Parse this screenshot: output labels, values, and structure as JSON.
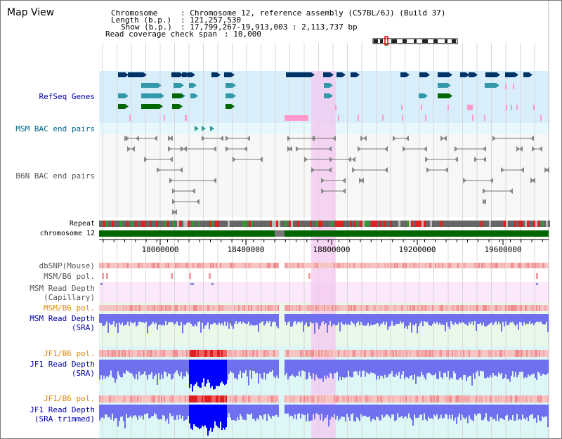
{
  "title": "Map View",
  "info": {
    "chromosome_key": "Chromosome",
    "chromosome_value": ": Chromosome 12, reference assembly (C57BL/6J) (Build 37)",
    "length_key": "Length (b.p.)",
    "length_value": ": 121,257,530",
    "show_key": "Show (b.p.)",
    "show_value": ": 17,799,267-19,913,003 : 2,113,737 bp",
    "coverage_key": "Read coverage check span",
    "coverage_value": ": 10,000"
  },
  "tracks": {
    "refseq": "RefSeq Genes",
    "msm_bac": "MSM BAC end pairs",
    "b6n_bac": "B6N BAC end pairs",
    "repeat": "Repeat",
    "chromosome": "chromosome 12",
    "dbsnp": "dbSNP(Mouse)",
    "msm_b6_pol_1": "MSM/B6 pol.",
    "msm_depth_cap_1": "MSM Read Depth",
    "msm_depth_cap_2": "(Capillary)",
    "msm_b6_pol_2": "MSM/B6 pol.",
    "msm_depth_sra_1": "MSM Read Depth",
    "msm_depth_sra_2": "(SRA)",
    "jf1_b6_pol_1": "JF1/B6 pol.",
    "jf1_depth_sra_1": "JF1 Read Depth",
    "jf1_depth_sra_2": "(SRA)",
    "jf1_b6_pol_2": "JF1/B6 pol.",
    "jf1_depth_trim_1": "JF1 Read Depth",
    "jf1_depth_trim_2": "(SRA trimmed)"
  },
  "axis": {
    "ticks": [
      "18000000",
      "18400000",
      "18800000",
      "19200000",
      "19600000"
    ]
  },
  "colors": {
    "highlight": "#f4c8f0",
    "refseq_dark": "#003366",
    "refseq_mid": "#3399aa",
    "refseq_green": "#006600",
    "refseq_pink": "#ff99cc",
    "chrom_green": "#006600",
    "depth_blue": "#6f6ff0",
    "depth_strong": "#0000ff",
    "pol_pink": "#f4b0b0",
    "pol_red": "#e02020"
  }
}
